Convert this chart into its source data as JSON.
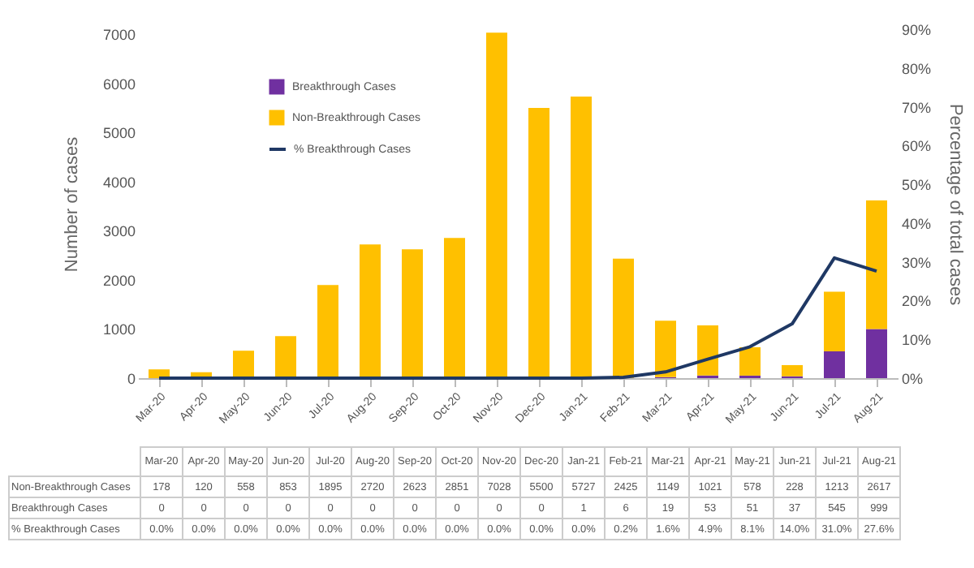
{
  "chart_data": {
    "type": "bar",
    "categories": [
      "Mar-20",
      "Apr-20",
      "May-20",
      "Jun-20",
      "Jul-20",
      "Aug-20",
      "Sep-20",
      "Oct-20",
      "Nov-20",
      "Dec-20",
      "Jan-21",
      "Feb-21",
      "Mar-21",
      "Apr-21",
      "May-21",
      "Jun-21",
      "Jul-21",
      "Aug-21"
    ],
    "series": [
      {
        "name": "Breakthrough Cases",
        "color": "#7030a0",
        "values": [
          0,
          0,
          0,
          0,
          0,
          0,
          0,
          0,
          0,
          0,
          1,
          6,
          19,
          53,
          51,
          37,
          545,
          999
        ],
        "value_labels": [
          "0",
          "0",
          "0",
          "0",
          "0",
          "0",
          "0",
          "0",
          "0",
          "0",
          "1",
          "6",
          "19",
          "53",
          "51",
          "37",
          "545",
          "999"
        ]
      },
      {
        "name": "Non-Breakthrough Cases",
        "color": "#ffc000",
        "values": [
          178,
          120,
          558,
          853,
          1895,
          2720,
          2623,
          2851,
          7028,
          5500,
          5727,
          2425,
          1149,
          1021,
          578,
          228,
          1213,
          2617
        ],
        "value_labels": [
          "178",
          "120",
          "558",
          "853",
          "1895",
          "2720",
          "2623",
          "2851",
          "7028",
          "5500",
          "5727",
          "2425",
          "1149",
          "1021",
          "578",
          "228",
          "1213",
          "2617"
        ]
      },
      {
        "name": "% Breakthrough Cases",
        "type": "line",
        "axis": "y2",
        "color": "#1f3864",
        "values": [
          0,
          0,
          0,
          0,
          0,
          0,
          0,
          0,
          0,
          0,
          0,
          0.2,
          1.6,
          4.9,
          8.1,
          14.0,
          31.0,
          27.6
        ],
        "value_labels": [
          "0.0%",
          "0.0%",
          "0.0%",
          "0.0%",
          "0.0%",
          "0.0%",
          "0.0%",
          "0.0%",
          "0.0%",
          "0.0%",
          "0.0%",
          "0.2%",
          "1.6%",
          "4.9%",
          "8.1%",
          "14.0%",
          "31.0%",
          "27.6%"
        ]
      }
    ],
    "stacked": true,
    "ylabel": "Number of cases",
    "y2label": "Percentage of total cases",
    "ylim": [
      0,
      7100
    ],
    "yticks": [
      0,
      1000,
      2000,
      3000,
      4000,
      5000,
      6000,
      7000
    ],
    "y2lim": [
      0,
      90
    ],
    "y2ticks": [
      {
        "value": 0,
        "label": "0%"
      },
      {
        "value": 10,
        "label": "10%"
      },
      {
        "value": 20,
        "label": "20%"
      },
      {
        "value": 30,
        "label": "30%"
      },
      {
        "value": 40,
        "label": "40%"
      },
      {
        "value": 50,
        "label": "50%"
      },
      {
        "value": 60,
        "label": "60%"
      },
      {
        "value": 70,
        "label": "70%"
      },
      {
        "value": 80,
        "label": "80%"
      },
      {
        "value": 90,
        "label": "90%"
      }
    ],
    "grid": false,
    "legend": "top left",
    "marker": "none",
    "line_style": "solid"
  }
}
